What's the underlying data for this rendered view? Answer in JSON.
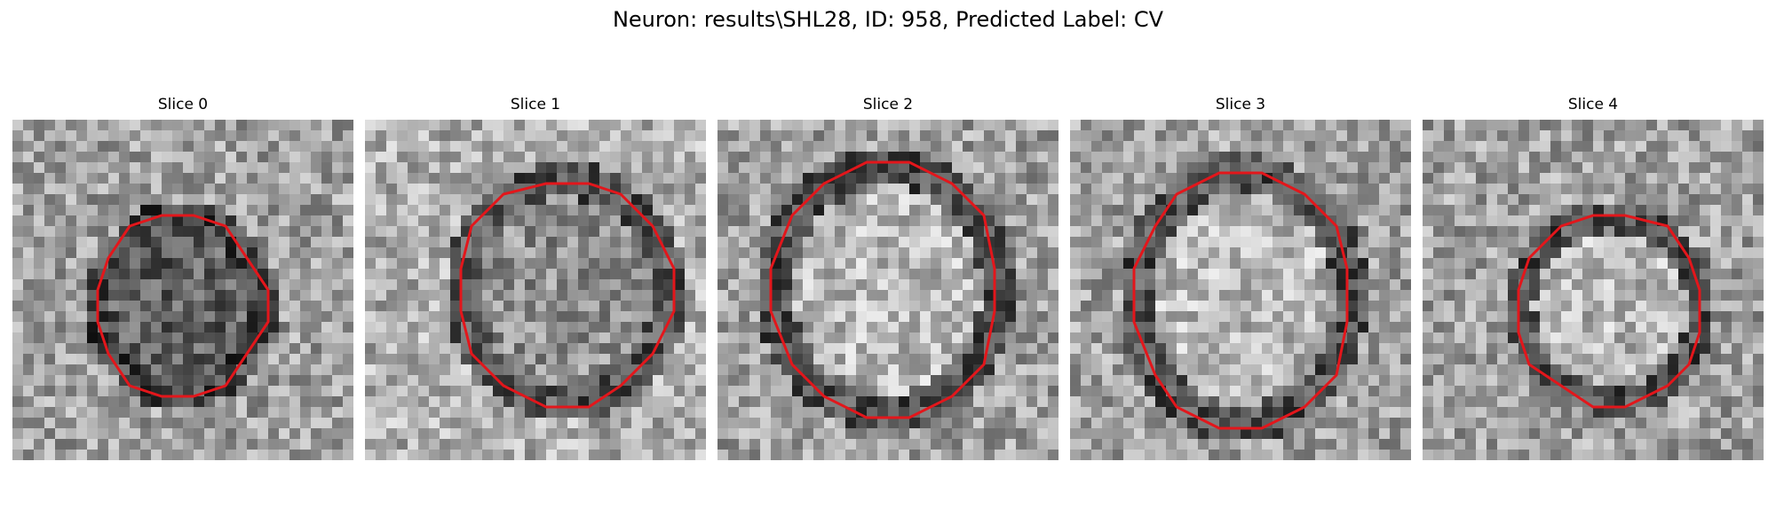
{
  "figure": {
    "suptitle": "Neuron: results\\SHL28, ID: 958, Predicted Label: CV",
    "contour_color": "#e3161b",
    "panels": [
      {
        "title": "Slice 0",
        "seed": 11,
        "interior": "dark"
      },
      {
        "title": "Slice 1",
        "seed": 23,
        "interior": "mixed"
      },
      {
        "title": "Slice 2",
        "seed": 37,
        "interior": "light"
      },
      {
        "title": "Slice 3",
        "seed": 41,
        "interior": "light"
      },
      {
        "title": "Slice 4",
        "seed": 53,
        "interior": "light"
      }
    ]
  }
}
